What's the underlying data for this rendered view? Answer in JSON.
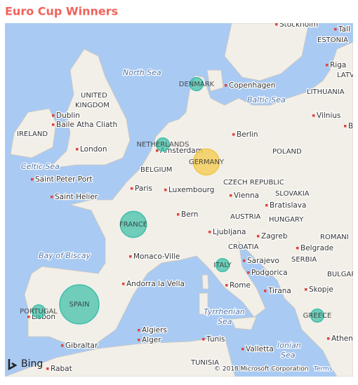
{
  "title": "Euro Cup Winners",
  "map": {
    "bubbles": [
      {
        "name": "DENMARK",
        "value": 1,
        "color": "#3cbfa8"
      },
      {
        "name": "NETHERLANDS",
        "value": 1,
        "color": "#3cbfa8"
      },
      {
        "name": "GERMANY",
        "value": 2,
        "color": "#f2c744"
      },
      {
        "name": "FRANCE",
        "value": 2,
        "color": "#3cbfa8"
      },
      {
        "name": "SPAIN",
        "value": 3,
        "color": "#3cbfa8"
      },
      {
        "name": "PORTUGAL",
        "value": 1,
        "color": "#3cbfa8"
      },
      {
        "name": "ITALY",
        "value": 1,
        "color": "#3cbfa8"
      },
      {
        "name": "GREECE",
        "value": 1,
        "color": "#3cbfa8"
      }
    ],
    "seas": [
      "North Sea",
      "Baltic Sea",
      "Celtic Sea",
      "Bay of Biscay",
      "Tyrrhenian",
      "Sea",
      "Ionian",
      "Sea"
    ],
    "countries": [
      "UNITED",
      "KINGDOM",
      "IRELAND",
      "POLAND",
      "CZECH REPUBLIC",
      "SLOVAKIA",
      "AUSTRIA",
      "HUNGARY",
      "CROATIA",
      "SERBIA",
      "BELGIUM",
      "LITHUANIA",
      "ESTONIA",
      "LATV",
      "ROMANI",
      "BULGAR",
      "TUNISIA"
    ],
    "cities": [
      "Copenhagen",
      "Dublin",
      "Baile Atha Cliath",
      "London",
      "Amsterdam",
      "Berlin",
      "Saint Peter Port",
      "Saint Helier",
      "Paris",
      "Luxembourg",
      "Vienna",
      "Bratislava",
      "Bern",
      "Ljubljana",
      "Zagreb",
      "Belgrade",
      "Sarajevo",
      "Podgorica",
      "Tirana",
      "Skopje",
      "Monaco-Ville",
      "Andorra la Vella",
      "Rome",
      "Lisbon",
      "Gibraltar",
      "Algiers",
      "Alger",
      "Tunis",
      "Valletta",
      "Athen",
      "Rabat",
      "Vilnius",
      "Riga",
      "Stockholm",
      "Tall",
      "B"
    ],
    "logo": "Bing",
    "copyright": "© 2018 Microsoft Corporation",
    "terms": "Terms"
  }
}
